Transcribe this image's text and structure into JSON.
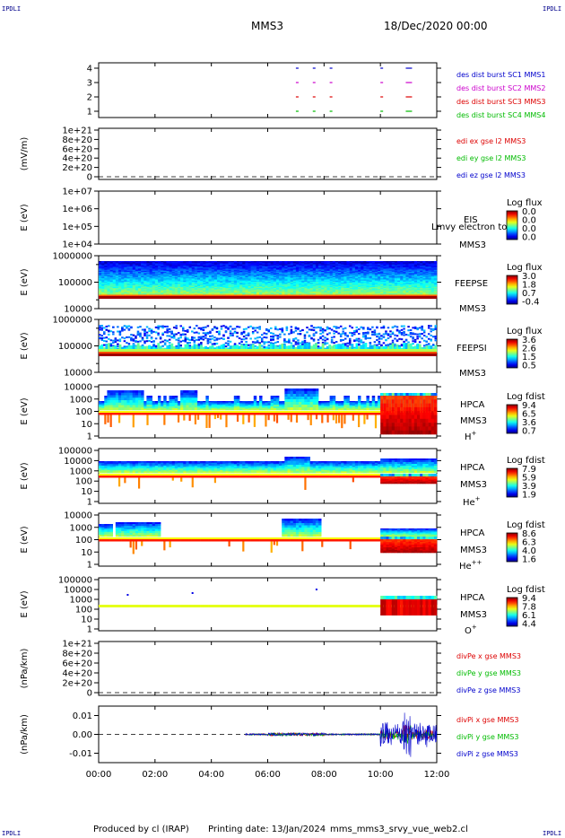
{
  "header": {
    "corner_label": "IPDLI",
    "spacecraft": "MMS3",
    "datetime": "18/Dec/2020 00:00"
  },
  "footer": {
    "produced_by": "Produced by cl (IRAP)",
    "printing_date": "Printing date: 13/Jan/2024",
    "filename": "mms_mms3_srvy_vue_web2.cl"
  },
  "colors": {
    "blue": "#0000cc",
    "magenta": "#cc00cc",
    "red": "#dd0000",
    "green": "#00bb00"
  },
  "chart_data": [
    {
      "type": "scatter",
      "panel": "burst",
      "yticks": [
        "4",
        "3",
        "2",
        "1"
      ],
      "series": [
        {
          "name": "des dist burst SC1 MMS1",
          "color": "#0000cc",
          "y": 4
        },
        {
          "name": "des dist burst SC2 MMS2",
          "color": "#cc00cc",
          "y": 3
        },
        {
          "name": "des dist burst SC3 MMS3",
          "color": "#dd0000",
          "y": 2
        },
        {
          "name": "des dist burst SC4 MMS4",
          "color": "#00bb00",
          "y": 1
        }
      ],
      "burst_hours": [
        7.0,
        7.6,
        8.2,
        10.0,
        10.9
      ]
    },
    {
      "type": "line",
      "panel": "edi",
      "ylabel": "(mV/m)",
      "yticks": [
        "1e+21",
        "8e+20",
        "6e+20",
        "4e+20",
        "2e+20",
        "0"
      ],
      "series": [
        {
          "name": "edi ex gse l2 MMS3",
          "color": "#dd0000"
        },
        {
          "name": "edi ey gse l2 MMS3",
          "color": "#00bb00"
        },
        {
          "name": "edi ez gse l2 MMS3",
          "color": "#0000cc"
        }
      ]
    },
    {
      "type": "heatmap",
      "panel": "eis",
      "ylabel": "E (eV)",
      "yticks": [
        "1e+07",
        "1e+06",
        "1e+05",
        "1e+04"
      ],
      "instrument": "EIS",
      "overlay": "Lmvy electron to",
      "spacecraft": "MMS3",
      "cbar_title": "Log flux",
      "cbar_ticks": [
        "0.0",
        "0.0",
        "0.0",
        "0.0"
      ]
    },
    {
      "type": "heatmap",
      "panel": "feepse",
      "ylabel": "E (eV)",
      "yticks": [
        "1000000",
        "100000",
        "10000"
      ],
      "instrument": "FEEPSE",
      "spacecraft": "MMS3",
      "cbar_title": "Log flux",
      "cbar_ticks": [
        "3.0",
        "1.8",
        "0.7",
        "-0.4"
      ]
    },
    {
      "type": "heatmap",
      "panel": "feepsi",
      "ylabel": "E (eV)",
      "yticks": [
        "1000000",
        "100000",
        "10000"
      ],
      "instrument": "FEEPSI",
      "spacecraft": "MMS3",
      "cbar_title": "Log flux",
      "cbar_ticks": [
        "3.6",
        "2.6",
        "1.5",
        "0.5"
      ]
    },
    {
      "type": "heatmap",
      "panel": "hpca-h",
      "ylabel": "E (eV)",
      "yticks": [
        "10000",
        "1000",
        "100",
        "10",
        "1"
      ],
      "instrument": "HPCA",
      "spacecraft": "MMS3",
      "species": "H",
      "species_sup": "+",
      "cbar_title": "Log fdist",
      "cbar_ticks": [
        "9.4",
        "6.5",
        "3.6",
        "0.7"
      ]
    },
    {
      "type": "heatmap",
      "panel": "hpca-he",
      "ylabel": "E (eV)",
      "yticks": [
        "100000",
        "10000",
        "1000",
        "100",
        "10",
        "1"
      ],
      "instrument": "HPCA",
      "spacecraft": "MMS3",
      "species": "He",
      "species_sup": "+",
      "cbar_title": "Log fdist",
      "cbar_ticks": [
        "7.9",
        "5.9",
        "3.9",
        "1.9"
      ]
    },
    {
      "type": "heatmap",
      "panel": "hpca-he2",
      "ylabel": "E (eV)",
      "yticks": [
        "10000",
        "1000",
        "100",
        "10",
        "1"
      ],
      "instrument": "HPCA",
      "spacecraft": "MMS3",
      "species": "He",
      "species_sup": "++",
      "cbar_title": "Log fdist",
      "cbar_ticks": [
        "8.6",
        "6.3",
        "4.0",
        "1.6"
      ]
    },
    {
      "type": "heatmap",
      "panel": "hpca-o",
      "ylabel": "E (eV)",
      "yticks": [
        "100000",
        "10000",
        "1000",
        "100",
        "10",
        "1"
      ],
      "instrument": "HPCA",
      "spacecraft": "MMS3",
      "species": "O",
      "species_sup": "+",
      "cbar_title": "Log fdist",
      "cbar_ticks": [
        "9.4",
        "7.8",
        "6.1",
        "4.4"
      ]
    },
    {
      "type": "line",
      "panel": "divpe",
      "ylabel": "(nPa/km)",
      "yticks": [
        "1e+21",
        "8e+20",
        "6e+20",
        "4e+20",
        "2e+20",
        "0"
      ],
      "series": [
        {
          "name": "divPe x gse MMS3",
          "color": "#dd0000"
        },
        {
          "name": "divPe y gse MMS3",
          "color": "#00bb00"
        },
        {
          "name": "divPe z gse MMS3",
          "color": "#0000cc"
        }
      ]
    },
    {
      "type": "line",
      "panel": "divpi",
      "ylabel": "(nPa/km)",
      "yticks": [
        "0.01",
        "0.00",
        "-0.01"
      ],
      "ylim": [
        -0.015,
        0.015
      ],
      "series": [
        {
          "name": "divPi x gse MMS3",
          "color": "#dd0000"
        },
        {
          "name": "divPi y gse MMS3",
          "color": "#00bb00"
        },
        {
          "name": "divPi z gse MMS3",
          "color": "#0000cc"
        }
      ],
      "active_hours": [
        5.2,
        12.0
      ]
    }
  ],
  "xaxis": {
    "ticks": [
      "00:00",
      "02:00",
      "04:00",
      "06:00",
      "08:00",
      "10:00",
      "12:00"
    ],
    "xlim": [
      0,
      12
    ]
  }
}
